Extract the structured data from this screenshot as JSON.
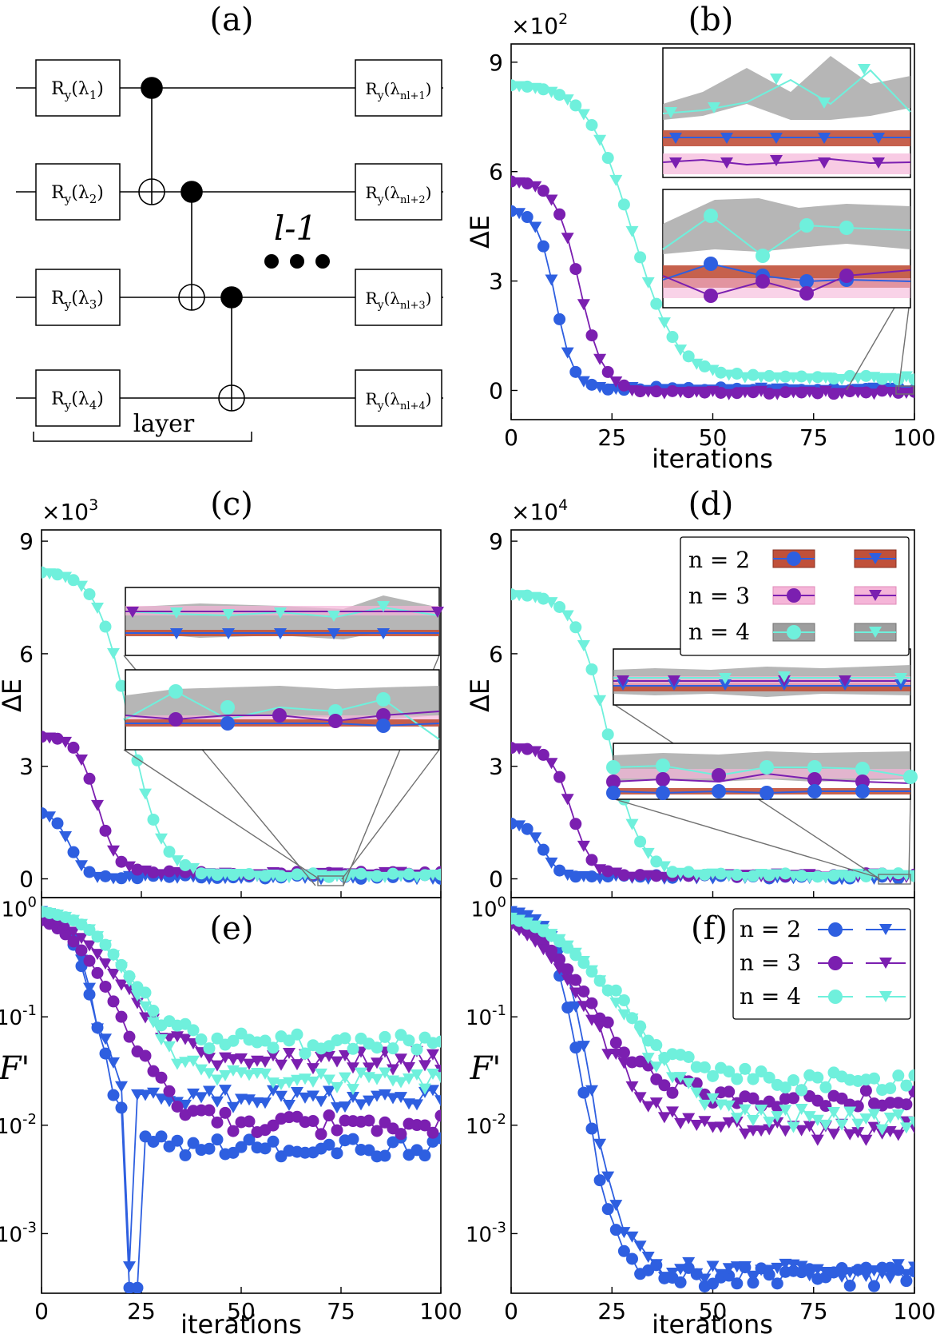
{
  "colors": {
    "n2": "#2e5fe0",
    "n3": "#7b1fb0",
    "n4": "#6ff0dc",
    "band_n2": "#c0503a",
    "band_n3": "#f5b5d8",
    "band_n4": "#9e9e9e"
  },
  "panel_a": {
    "label": "(a)",
    "gates_left": [
      "R_y(λ_1)",
      "R_y(λ_2)",
      "R_y(λ_3)",
      "R_y(λ_4)"
    ],
    "gates_right": [
      "R_y(λ_{nl+1})",
      "R_y(λ_{nl+2})",
      "R_y(λ_{nl+3})",
      "R_y(λ_{nl+4})"
    ],
    "layer_label": "layer",
    "repeat_label": "l-1",
    "dots": "●●●"
  },
  "legend": {
    "n_labels": [
      "n = 2",
      "n = 3",
      "n = 4"
    ]
  },
  "chart_data": [
    {
      "id": "b",
      "title": "(b)",
      "type": "line",
      "ylabel": "ΔE",
      "xlabel": "iterations",
      "y_multiplier": "×10",
      "y_multiplier_exp": "2",
      "xlim": [
        0,
        100
      ],
      "ylim": [
        -0.8,
        9.5
      ],
      "xticks": [
        0,
        25,
        50,
        75,
        100
      ],
      "xtick_labels": [
        "0",
        "25",
        "50",
        "75",
        "100"
      ],
      "yticks": [
        0,
        3,
        6,
        9
      ],
      "ytick_labels": [
        "0",
        "3",
        "6",
        "9"
      ],
      "series": [
        {
          "name": "n = 2",
          "start": 4.95,
          "t_half": 11,
          "width": 2.2,
          "floor": 0.05
        },
        {
          "name": "n = 3",
          "start": 5.75,
          "t_half": 17,
          "width": 3.0,
          "floor": -0.05
        },
        {
          "name": "n = 4",
          "start": 8.4,
          "t_half": 30,
          "width": 5.5,
          "floor": 0.35
        }
      ]
    },
    {
      "id": "c",
      "title": "(c)",
      "type": "line",
      "ylabel": "ΔE",
      "xlabel": "",
      "y_multiplier": "×10",
      "y_multiplier_exp": "3",
      "xlim": [
        0,
        100
      ],
      "ylim": [
        -0.5,
        9.3
      ],
      "xticks": [
        0,
        25,
        50,
        75,
        100
      ],
      "xtick_labels": [],
      "yticks": [
        0,
        3,
        6,
        9
      ],
      "ytick_labels": [
        "0",
        "3",
        "6",
        "9"
      ],
      "series": [
        {
          "name": "n = 2",
          "start": 1.8,
          "t_half": 7,
          "width": 2.0,
          "floor": 0.05
        },
        {
          "name": "n = 3",
          "start": 3.8,
          "t_half": 14,
          "width": 2.5,
          "floor": 0.15
        },
        {
          "name": "n = 4",
          "start": 8.2,
          "t_half": 22,
          "width": 4.0,
          "floor": 0.1
        }
      ]
    },
    {
      "id": "d",
      "title": "(d)",
      "type": "line",
      "ylabel": "ΔE",
      "xlabel": "",
      "y_multiplier": "×10",
      "y_multiplier_exp": "4",
      "xlim": [
        0,
        100
      ],
      "ylim": [
        -0.5,
        9.3
      ],
      "xticks": [
        0,
        25,
        50,
        75,
        100
      ],
      "xtick_labels": [],
      "yticks": [
        0,
        3,
        6,
        9
      ],
      "ytick_labels": [
        "0",
        "3",
        "6",
        "9"
      ],
      "series": [
        {
          "name": "n = 2",
          "start": 1.5,
          "t_half": 8,
          "width": 2.0,
          "floor": 0.05
        },
        {
          "name": "n = 3",
          "start": 3.5,
          "t_half": 15,
          "width": 2.5,
          "floor": 0.1
        },
        {
          "name": "n = 4",
          "start": 7.6,
          "t_half": 24,
          "width": 4.0,
          "floor": 0.1
        }
      ]
    },
    {
      "id": "e",
      "title": "(e)",
      "type": "line",
      "yscale": "log",
      "ylabel": "F'",
      "xlabel": "iterations",
      "xlim": [
        0,
        100
      ],
      "ylim_log10": [
        -3.55,
        0.1
      ],
      "xticks": [
        0,
        25,
        50,
        75,
        100
      ],
      "xtick_labels": [
        "0",
        "25",
        "50",
        "75",
        "100"
      ],
      "yticks_log10": [
        0,
        -1,
        -2,
        -3
      ],
      "ytick_labels": [
        "10^0",
        "10^-1",
        "10^-2",
        "10^-3"
      ],
      "series": [
        {
          "name": "n = 2 (●)",
          "marker": "circle",
          "start": 0,
          "t_half": 14,
          "width": 3.5,
          "floor": -2.2,
          "dip": {
            "x": 23,
            "y": -3.5
          }
        },
        {
          "name": "n = 2 (▼)",
          "marker": "triangle",
          "start": 0,
          "t_half": 13,
          "width": 3.0,
          "floor": -1.75,
          "dip": {
            "x": 22,
            "y": -3.3
          }
        },
        {
          "name": "n = 3 (●)",
          "marker": "circle",
          "start": 0,
          "t_half": 20,
          "width": 7.0,
          "floor": -2.0
        },
        {
          "name": "n = 3 (▼)",
          "marker": "triangle",
          "start": 0,
          "t_half": 20,
          "width": 7.0,
          "floor": -1.4
        },
        {
          "name": "n = 4 (●)",
          "marker": "circle",
          "start": 0,
          "t_half": 22,
          "width": 6.0,
          "floor": -1.25
        },
        {
          "name": "n = 4 (▼)",
          "marker": "triangle",
          "start": 0,
          "t_half": 24,
          "width": 6.0,
          "floor": -1.6
        }
      ]
    },
    {
      "id": "f",
      "title": "(f)",
      "type": "line",
      "yscale": "log",
      "ylabel": "F'",
      "xlabel": "iterations",
      "xlim": [
        0,
        100
      ],
      "ylim_log10": [
        -3.55,
        0.1
      ],
      "xticks": [
        0,
        25,
        50,
        75,
        100
      ],
      "xtick_labels": [
        "0",
        "25",
        "50",
        "75",
        "100"
      ],
      "yticks_log10": [
        0,
        -1,
        -2,
        -3
      ],
      "ytick_labels": [
        "10^0",
        "10^-1",
        "10^-2",
        "10^-3"
      ],
      "series": [
        {
          "name": "n = 2 (●)",
          "marker": "circle",
          "start": 0,
          "t_half": 18,
          "width": 4.0,
          "floor": -3.4
        },
        {
          "name": "n = 2 (▼)",
          "marker": "triangle",
          "start": 0,
          "t_half": 20,
          "width": 4.0,
          "floor": -3.35
        },
        {
          "name": "n = 3 (●)",
          "marker": "circle",
          "start": 0,
          "t_half": 20,
          "width": 8.0,
          "floor": -1.75
        },
        {
          "name": "n = 3 (▼)",
          "marker": "triangle",
          "start": 0,
          "t_half": 20,
          "width": 8.0,
          "floor": -2.05
        },
        {
          "name": "n = 4 (●)",
          "marker": "circle",
          "start": 0,
          "t_half": 25,
          "width": 9.0,
          "floor": -1.6
        },
        {
          "name": "n = 4 (▼)",
          "marker": "triangle",
          "start": 0,
          "t_half": 28,
          "width": 9.0,
          "floor": -1.95
        }
      ]
    }
  ]
}
